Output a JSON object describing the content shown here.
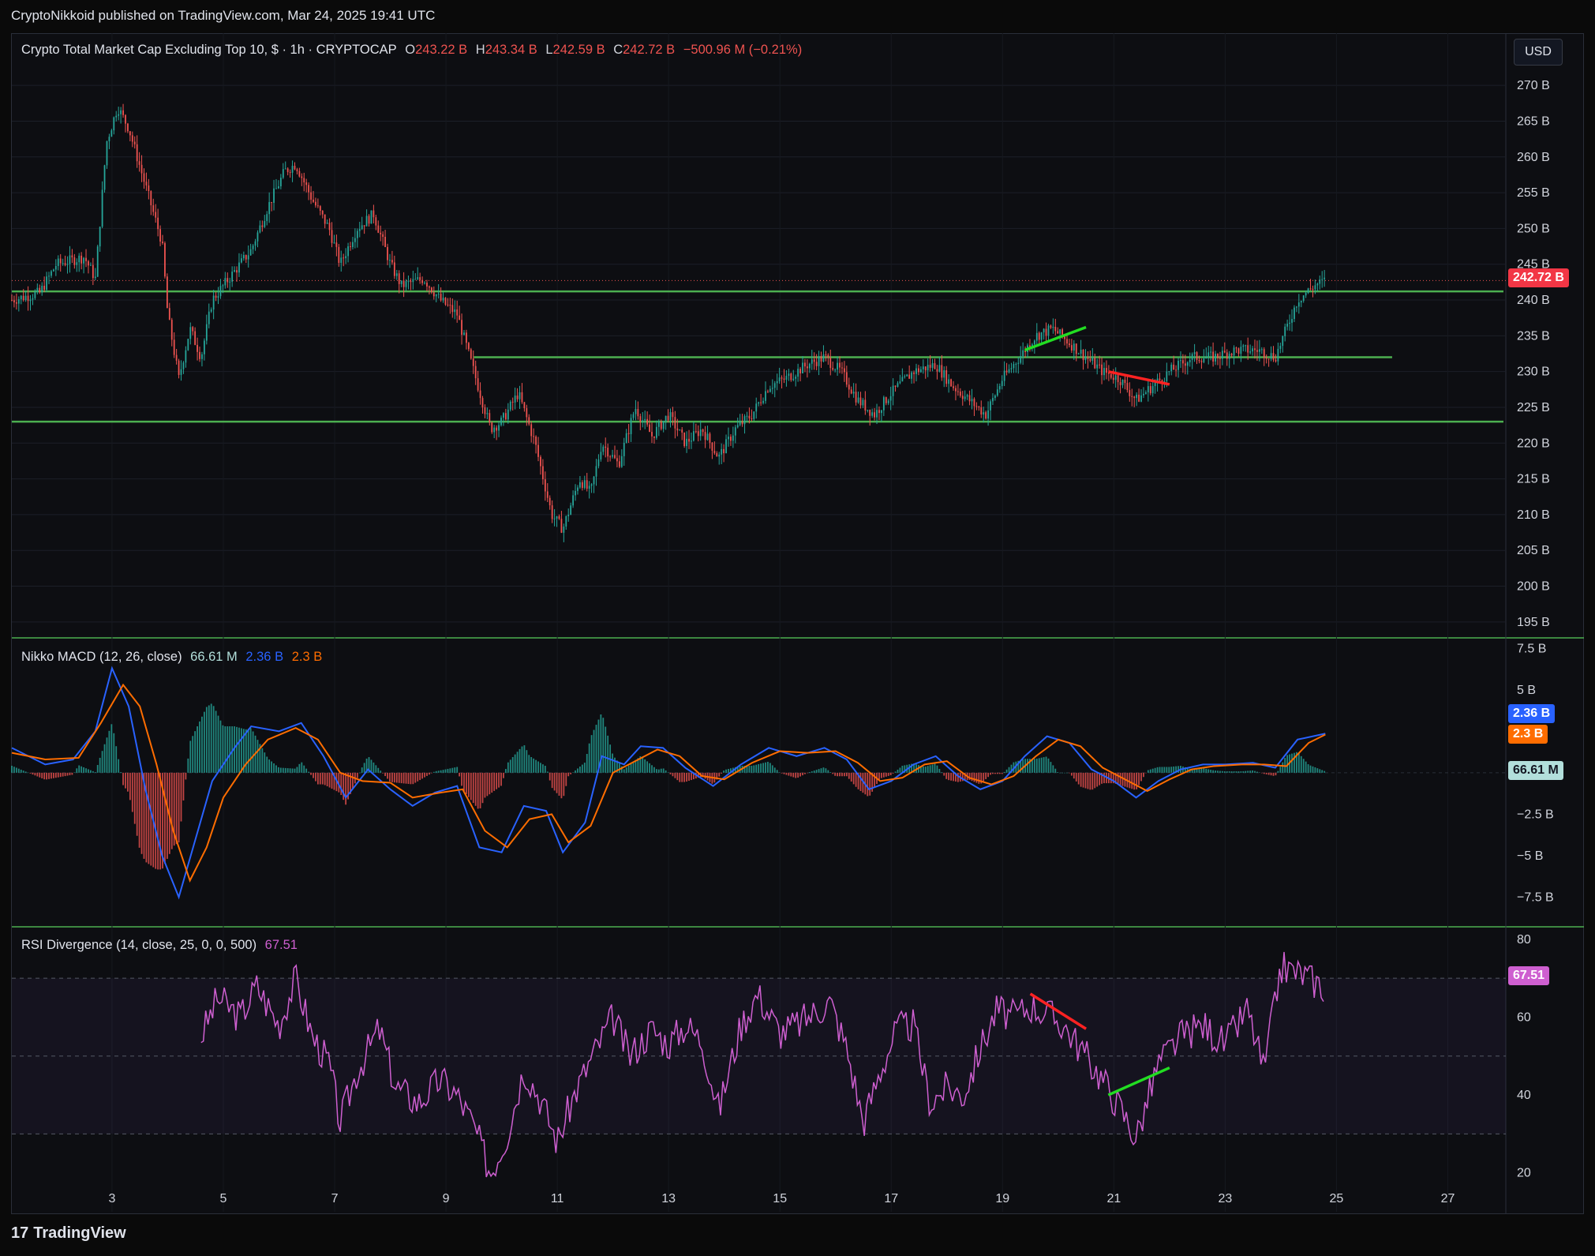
{
  "header": {
    "publisher_line": "CryptoNikkoid published on TradingView.com, Mar 24, 2025 19:41 UTC"
  },
  "currency_button": "USD",
  "footer": {
    "brand": "TradingView",
    "logo_glyph": "17"
  },
  "colors": {
    "up": "#26a69a",
    "down": "#ef5350",
    "support": "#4caf50",
    "macd": "#2962ff",
    "signal": "#ff6d00",
    "rsi": "#ce5fd0"
  },
  "chart_data": [
    {
      "type": "candlestick",
      "title": "Crypto Total Market Cap Excluding Top 10, $ · 1h · CRYPTOCAP",
      "ohlc": {
        "O": "243.22 B",
        "H": "243.34 B",
        "L": "242.59 B",
        "C": "242.72 B",
        "change": "−500.96 M (−0.21%)"
      },
      "last_price_label": "242.72 B",
      "last_price": 242.72,
      "y_ticks": [
        "270 B",
        "265 B",
        "260 B",
        "255 B",
        "250 B",
        "245 B",
        "240 B",
        "235 B",
        "230 B",
        "225 B",
        "220 B",
        "215 B",
        "210 B",
        "205 B",
        "200 B",
        "195 B"
      ],
      "ylim": [
        193,
        272
      ],
      "x_ticks": [
        "3",
        "5",
        "7",
        "9",
        "11",
        "13",
        "15",
        "17",
        "19",
        "21",
        "23",
        "25",
        "27"
      ],
      "x_tick_days": [
        3,
        5,
        7,
        9,
        11,
        13,
        15,
        17,
        19,
        21,
        23,
        25,
        27
      ],
      "xlim_days": [
        1.2,
        28.0
      ],
      "price_path": [
        [
          1.2,
          240
        ],
        [
          1.7,
          241
        ],
        [
          2.0,
          245
        ],
        [
          2.5,
          246
        ],
        [
          2.7,
          243
        ],
        [
          2.9,
          262
        ],
        [
          3.1,
          267
        ],
        [
          3.3,
          264
        ],
        [
          3.6,
          256
        ],
        [
          3.9,
          248
        ],
        [
          4.0,
          238
        ],
        [
          4.2,
          229
        ],
        [
          4.4,
          236
        ],
        [
          4.6,
          232
        ],
        [
          4.8,
          240
        ],
        [
          5.2,
          244
        ],
        [
          5.5,
          247
        ],
        [
          5.8,
          253
        ],
        [
          6.1,
          258
        ],
        [
          6.3,
          259
        ],
        [
          6.6,
          254
        ],
        [
          6.9,
          250
        ],
        [
          7.1,
          245
        ],
        [
          7.4,
          250
        ],
        [
          7.7,
          252
        ],
        [
          8.0,
          245
        ],
        [
          8.2,
          242
        ],
        [
          8.6,
          243
        ],
        [
          8.9,
          240
        ],
        [
          9.2,
          238
        ],
        [
          9.5,
          230
        ],
        [
          9.8,
          222
        ],
        [
          10.0,
          223
        ],
        [
          10.3,
          227
        ],
        [
          10.6,
          220
        ],
        [
          10.9,
          210
        ],
        [
          11.1,
          208
        ],
        [
          11.4,
          215
        ],
        [
          11.6,
          213
        ],
        [
          11.8,
          220
        ],
        [
          12.1,
          217
        ],
        [
          12.4,
          225
        ],
        [
          12.7,
          221
        ],
        [
          13.0,
          224
        ],
        [
          13.3,
          220
        ],
        [
          13.6,
          222
        ],
        [
          13.9,
          218
        ],
        [
          14.2,
          222
        ],
        [
          14.5,
          224
        ],
        [
          14.8,
          228
        ],
        [
          15.1,
          229
        ],
        [
          15.5,
          231
        ],
        [
          15.8,
          232
        ],
        [
          16.1,
          230
        ],
        [
          16.4,
          226
        ],
        [
          16.7,
          224
        ],
        [
          17.0,
          227
        ],
        [
          17.4,
          230
        ],
        [
          17.8,
          231
        ],
        [
          18.1,
          228
        ],
        [
          18.4,
          226
        ],
        [
          18.7,
          224
        ],
        [
          19.0,
          229
        ],
        [
          19.3,
          232
        ],
        [
          19.6,
          235
        ],
        [
          19.9,
          236
        ],
        [
          20.2,
          234
        ],
        [
          20.5,
          232
        ],
        [
          20.8,
          230
        ],
        [
          21.1,
          229
        ],
        [
          21.4,
          226
        ],
        [
          21.7,
          228
        ],
        [
          22.0,
          230
        ],
        [
          22.4,
          232
        ],
        [
          22.8,
          232
        ],
        [
          23.2,
          233
        ],
        [
          23.6,
          233
        ],
        [
          23.9,
          232
        ],
        [
          24.1,
          236
        ],
        [
          24.3,
          240
        ],
        [
          24.6,
          242
        ],
        [
          24.8,
          242.7
        ]
      ],
      "horizontal_levels": [
        {
          "price": 241.2,
          "from_day": 1.2,
          "to_day": 28.0
        },
        {
          "price": 232.0,
          "from_day": 9.5,
          "to_day": 26.0
        },
        {
          "price": 223.0,
          "from_day": 1.2,
          "to_day": 28.0
        }
      ],
      "trendlines": [
        {
          "color": "#22dd22",
          "from": [
            19.4,
            233.0
          ],
          "to": [
            20.5,
            236.2
          ]
        },
        {
          "color": "#ff2222",
          "from": [
            20.9,
            230.0
          ],
          "to": [
            22.0,
            228.2
          ]
        }
      ]
    },
    {
      "type": "line",
      "title": "Nikko MACD (12, 26, close)",
      "values_shown": {
        "histogram": "66.61 M",
        "macd": "2.36 B",
        "signal": "2.3 B"
      },
      "y_ticks": [
        "7.5 B",
        "5 B",
        "−2.5 B",
        "−5 B",
        "−7.5 B"
      ],
      "ylim": [
        -9.1,
        7.8
      ],
      "series": [
        {
          "name": "MACD",
          "values": [
            [
              1.2,
              1.5
            ],
            [
              1.8,
              0.5
            ],
            [
              2.3,
              0.8
            ],
            [
              2.7,
              2.5
            ],
            [
              3.0,
              6.3
            ],
            [
              3.3,
              4.0
            ],
            [
              3.6,
              -1.0
            ],
            [
              3.9,
              -5.0
            ],
            [
              4.2,
              -7.5
            ],
            [
              4.5,
              -4.0
            ],
            [
              4.8,
              -0.5
            ],
            [
              5.2,
              1.5
            ],
            [
              5.5,
              2.8
            ],
            [
              6.0,
              2.5
            ],
            [
              6.4,
              3.0
            ],
            [
              6.8,
              1.0
            ],
            [
              7.2,
              -1.5
            ],
            [
              7.6,
              0.2
            ],
            [
              8.0,
              -1.0
            ],
            [
              8.4,
              -2.0
            ],
            [
              8.8,
              -1.2
            ],
            [
              9.2,
              -0.8
            ],
            [
              9.6,
              -4.5
            ],
            [
              10.0,
              -4.8
            ],
            [
              10.4,
              -2.0
            ],
            [
              10.8,
              -2.3
            ],
            [
              11.1,
              -4.8
            ],
            [
              11.5,
              -3.0
            ],
            [
              11.8,
              1.0
            ],
            [
              12.2,
              0.5
            ],
            [
              12.5,
              1.6
            ],
            [
              12.9,
              1.5
            ],
            [
              13.3,
              0.3
            ],
            [
              13.8,
              -0.8
            ],
            [
              14.3,
              0.5
            ],
            [
              14.8,
              1.5
            ],
            [
              15.3,
              1.0
            ],
            [
              15.8,
              1.5
            ],
            [
              16.2,
              0.8
            ],
            [
              16.6,
              -1.0
            ],
            [
              17.0,
              -0.5
            ],
            [
              17.4,
              0.5
            ],
            [
              17.8,
              1.0
            ],
            [
              18.2,
              -0.2
            ],
            [
              18.6,
              -1.0
            ],
            [
              19.0,
              -0.5
            ],
            [
              19.4,
              1.0
            ],
            [
              19.8,
              2.2
            ],
            [
              20.2,
              1.8
            ],
            [
              20.6,
              0.2
            ],
            [
              21.0,
              -0.5
            ],
            [
              21.4,
              -1.5
            ],
            [
              21.8,
              -0.5
            ],
            [
              22.2,
              0.2
            ],
            [
              22.6,
              0.5
            ],
            [
              23.0,
              0.5
            ],
            [
              23.5,
              0.6
            ],
            [
              23.9,
              0.3
            ],
            [
              24.3,
              2.0
            ],
            [
              24.8,
              2.36
            ]
          ]
        },
        {
          "name": "Signal",
          "values": [
            [
              1.2,
              1.2
            ],
            [
              1.8,
              0.8
            ],
            [
              2.4,
              0.9
            ],
            [
              2.8,
              3.0
            ],
            [
              3.2,
              5.3
            ],
            [
              3.5,
              4.0
            ],
            [
              3.8,
              0.5
            ],
            [
              4.1,
              -3.5
            ],
            [
              4.4,
              -6.5
            ],
            [
              4.7,
              -4.5
            ],
            [
              5.0,
              -1.5
            ],
            [
              5.4,
              0.5
            ],
            [
              5.8,
              2.0
            ],
            [
              6.3,
              2.7
            ],
            [
              6.7,
              2.0
            ],
            [
              7.1,
              0.0
            ],
            [
              7.5,
              -0.5
            ],
            [
              8.0,
              -0.6
            ],
            [
              8.4,
              -1.5
            ],
            [
              8.9,
              -1.2
            ],
            [
              9.3,
              -1.0
            ],
            [
              9.7,
              -3.5
            ],
            [
              10.1,
              -4.5
            ],
            [
              10.5,
              -2.8
            ],
            [
              10.9,
              -2.5
            ],
            [
              11.2,
              -4.2
            ],
            [
              11.6,
              -3.2
            ],
            [
              12.0,
              0.0
            ],
            [
              12.4,
              0.7
            ],
            [
              12.8,
              1.4
            ],
            [
              13.2,
              1.0
            ],
            [
              13.6,
              -0.2
            ],
            [
              14.0,
              -0.4
            ],
            [
              14.5,
              0.6
            ],
            [
              15.0,
              1.3
            ],
            [
              15.5,
              1.2
            ],
            [
              16.0,
              1.3
            ],
            [
              16.4,
              0.6
            ],
            [
              16.8,
              -0.5
            ],
            [
              17.2,
              -0.3
            ],
            [
              17.6,
              0.5
            ],
            [
              18.0,
              0.7
            ],
            [
              18.4,
              -0.3
            ],
            [
              18.8,
              -0.7
            ],
            [
              19.2,
              -0.2
            ],
            [
              19.6,
              1.0
            ],
            [
              20.0,
              2.0
            ],
            [
              20.4,
              1.6
            ],
            [
              20.8,
              0.3
            ],
            [
              21.2,
              -0.4
            ],
            [
              21.6,
              -1.1
            ],
            [
              22.0,
              -0.4
            ],
            [
              22.4,
              0.2
            ],
            [
              22.8,
              0.4
            ],
            [
              23.3,
              0.5
            ],
            [
              23.7,
              0.5
            ],
            [
              24.1,
              0.4
            ],
            [
              24.5,
              1.8
            ],
            [
              24.8,
              2.3
            ]
          ]
        }
      ],
      "histogram_label": "66.61 M"
    },
    {
      "type": "line",
      "title": "RSI Divergence (14, close, 25, 0, 0, 500)",
      "value_shown": "67.51",
      "y_ticks": [
        "80",
        "60",
        "40",
        "20"
      ],
      "ylim": [
        10,
        82
      ],
      "band": [
        30,
        70
      ],
      "midline": 50,
      "series": [
        {
          "name": "RSI",
          "values": [
            [
              4.6,
              55
            ],
            [
              4.9,
              65
            ],
            [
              5.3,
              60
            ],
            [
              5.6,
              68
            ],
            [
              6.0,
              58
            ],
            [
              6.3,
              70
            ],
            [
              6.6,
              55
            ],
            [
              6.9,
              48
            ],
            [
              7.1,
              33
            ],
            [
              7.4,
              46
            ],
            [
              7.8,
              57
            ],
            [
              8.1,
              42
            ],
            [
              8.5,
              38
            ],
            [
              8.9,
              44
            ],
            [
              9.2,
              40
            ],
            [
              9.5,
              32
            ],
            [
              9.8,
              20
            ],
            [
              10.1,
              30
            ],
            [
              10.4,
              47
            ],
            [
              10.7,
              39
            ],
            [
              11.0,
              28
            ],
            [
              11.3,
              40
            ],
            [
              11.6,
              49
            ],
            [
              12.0,
              60
            ],
            [
              12.3,
              50
            ],
            [
              12.7,
              57
            ],
            [
              13.0,
              53
            ],
            [
              13.3,
              58
            ],
            [
              13.6,
              54
            ],
            [
              13.9,
              36
            ],
            [
              14.3,
              58
            ],
            [
              14.6,
              66
            ],
            [
              15.0,
              56
            ],
            [
              15.3,
              58
            ],
            [
              15.6,
              61
            ],
            [
              15.9,
              64
            ],
            [
              16.2,
              52
            ],
            [
              16.5,
              33
            ],
            [
              16.8,
              46
            ],
            [
              17.1,
              57
            ],
            [
              17.4,
              58
            ],
            [
              17.7,
              38
            ],
            [
              18.0,
              42
            ],
            [
              18.3,
              40
            ],
            [
              18.6,
              52
            ],
            [
              18.9,
              62
            ],
            [
              19.2,
              60
            ],
            [
              19.5,
              63
            ],
            [
              19.8,
              61
            ],
            [
              20.1,
              58
            ],
            [
              20.4,
              52
            ],
            [
              20.8,
              44
            ],
            [
              21.1,
              37
            ],
            [
              21.4,
              29
            ],
            [
              21.8,
              48
            ],
            [
              22.2,
              55
            ],
            [
              22.6,
              58
            ],
            [
              23.0,
              53
            ],
            [
              23.4,
              62
            ],
            [
              23.7,
              46
            ],
            [
              24.0,
              73
            ],
            [
              24.4,
              71
            ],
            [
              24.8,
              67.51
            ]
          ]
        }
      ],
      "trendlines": [
        {
          "color": "#ff2222",
          "from": [
            19.5,
            66
          ],
          "to": [
            20.5,
            57
          ]
        },
        {
          "color": "#22dd22",
          "from": [
            20.9,
            40
          ],
          "to": [
            22.0,
            47
          ]
        }
      ]
    }
  ]
}
